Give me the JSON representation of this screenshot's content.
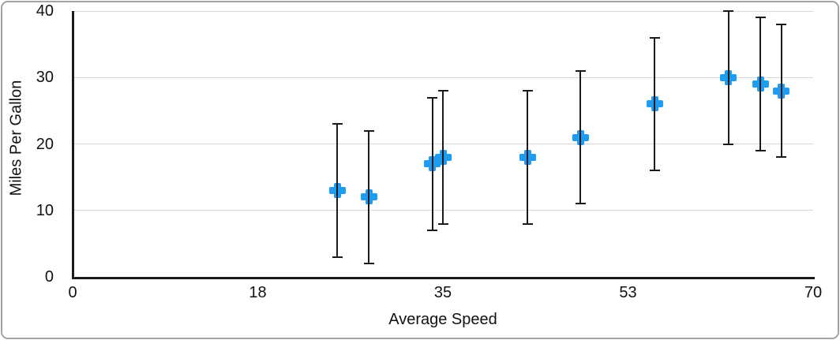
{
  "frame": {
    "border_color": "#a2a2a2"
  },
  "chart_data": {
    "type": "scatter",
    "title": "",
    "xlabel": "Average Speed",
    "ylabel": "Miles Per Gallon",
    "xlim": [
      0,
      70
    ],
    "ylim": [
      0,
      40
    ],
    "x_ticks": [
      {
        "value": 0,
        "label": "0"
      },
      {
        "value": 17.5,
        "label": "18"
      },
      {
        "value": 35,
        "label": "35"
      },
      {
        "value": 52.5,
        "label": "53"
      },
      {
        "value": 70,
        "label": "70"
      }
    ],
    "y_ticks": [
      {
        "value": 0,
        "label": "0"
      },
      {
        "value": 10,
        "label": "10"
      },
      {
        "value": 20,
        "label": "20"
      },
      {
        "value": 30,
        "label": "30"
      },
      {
        "value": 40,
        "label": "40"
      }
    ],
    "grid": "horizontal-only",
    "legend": "none",
    "colors": {
      "marker": "#1d9cf0",
      "error_bar": "#1a1a1a",
      "axis": "#1a1a1a",
      "gridline": "#d8d8d8",
      "text": "#111111",
      "background": "#ffffff"
    },
    "series": [
      {
        "name": "Miles Per Gallon",
        "marker": "plus",
        "points": [
          {
            "x": 25,
            "y": 13,
            "error_plus": 10,
            "error_minus": 10
          },
          {
            "x": 28,
            "y": 12,
            "error_plus": 10,
            "error_minus": 10
          },
          {
            "x": 34,
            "y": 17,
            "error_plus": 10,
            "error_minus": 10
          },
          {
            "x": 35,
            "y": 18,
            "error_plus": 10,
            "error_minus": 10
          },
          {
            "x": 43,
            "y": 18,
            "error_plus": 10,
            "error_minus": 10
          },
          {
            "x": 48,
            "y": 21,
            "error_plus": 10,
            "error_minus": 10
          },
          {
            "x": 55,
            "y": 26,
            "error_plus": 10,
            "error_minus": 10
          },
          {
            "x": 62,
            "y": 30,
            "error_plus": 10,
            "error_minus": 10
          },
          {
            "x": 65,
            "y": 29,
            "error_plus": 10,
            "error_minus": 10
          },
          {
            "x": 67,
            "y": 28,
            "error_plus": 10,
            "error_minus": 10
          }
        ]
      }
    ]
  }
}
